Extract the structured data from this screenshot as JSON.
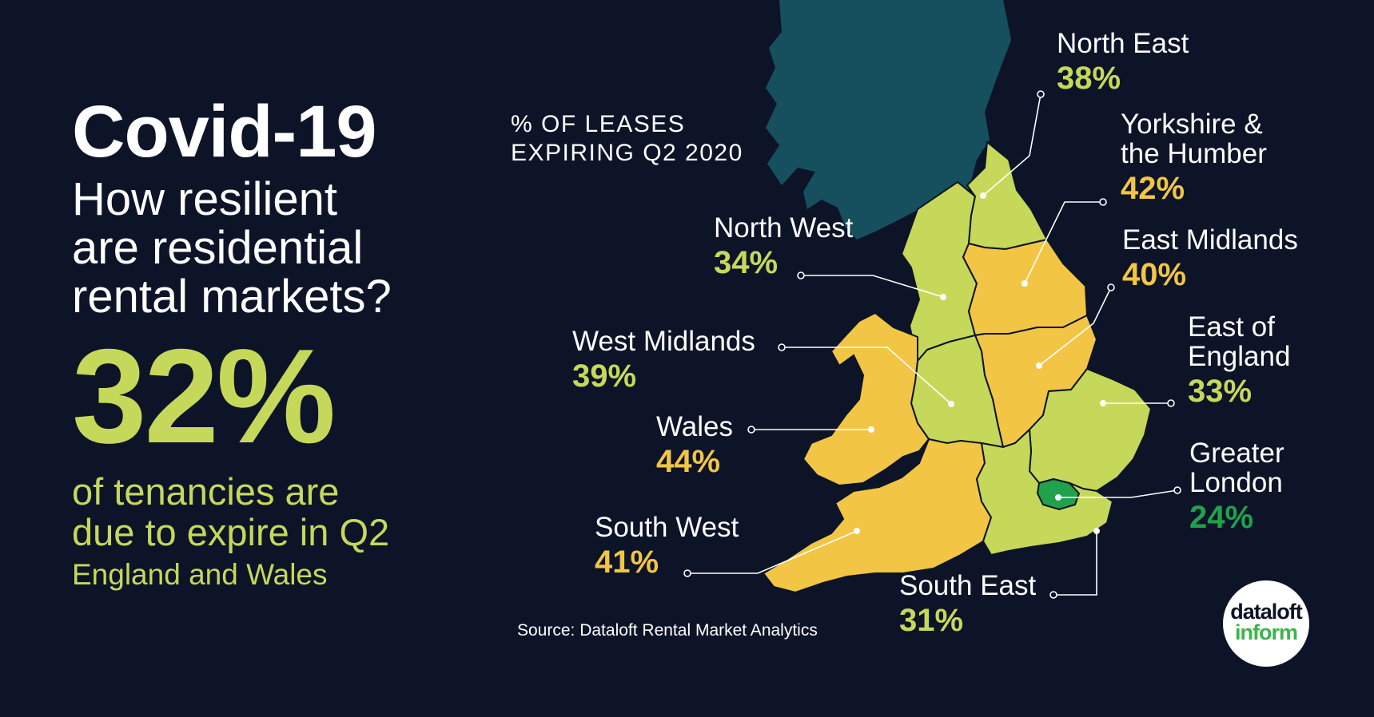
{
  "heading": {
    "title": "Covid-19",
    "subtitle_lines": [
      "How resilient",
      "are residential",
      "rental markets?"
    ],
    "headline_value": "32%",
    "headline_text_lines": [
      "of tenancies are",
      "due to expire in Q2"
    ],
    "headline_scope": "England and Wales"
  },
  "map": {
    "title_lines": [
      "% OF LEASES",
      "EXPIRING Q2 2020"
    ],
    "source": "Source: Dataloft Rental Market Analytics",
    "colors": {
      "background": "#0d1428",
      "scotland": "#16505e",
      "low": "#c6d85a",
      "high": "#f2c545",
      "london": "#1fa24b",
      "white": "#ffffff"
    },
    "regions": [
      {
        "key": "north_east",
        "name_lines": [
          "North East"
        ],
        "value": "38%",
        "color": "#c6d85a"
      },
      {
        "key": "yorkshire",
        "name_lines": [
          "Yorkshire &",
          "the Humber"
        ],
        "value": "42%",
        "color": "#f2c545"
      },
      {
        "key": "east_midlands",
        "name_lines": [
          "East Midlands"
        ],
        "value": "40%",
        "color": "#f2c545"
      },
      {
        "key": "east_of_england",
        "name_lines": [
          "East of",
          "England"
        ],
        "value": "33%",
        "color": "#c6d85a"
      },
      {
        "key": "greater_london",
        "name_lines": [
          "Greater",
          "London"
        ],
        "value": "24%",
        "color": "#1fa24b"
      },
      {
        "key": "south_east",
        "name_lines": [
          "South East"
        ],
        "value": "31%",
        "color": "#c6d85a"
      },
      {
        "key": "south_west",
        "name_lines": [
          "South West"
        ],
        "value": "41%",
        "color": "#f2c545"
      },
      {
        "key": "wales",
        "name_lines": [
          "Wales"
        ],
        "value": "44%",
        "color": "#f2c545"
      },
      {
        "key": "west_midlands",
        "name_lines": [
          "West Midlands"
        ],
        "value": "39%",
        "color": "#c6d85a"
      },
      {
        "key": "north_west",
        "name_lines": [
          "North West"
        ],
        "value": "34%",
        "color": "#c6d85a"
      }
    ]
  },
  "logo": {
    "line1": "dataloft",
    "line2": "inform"
  }
}
